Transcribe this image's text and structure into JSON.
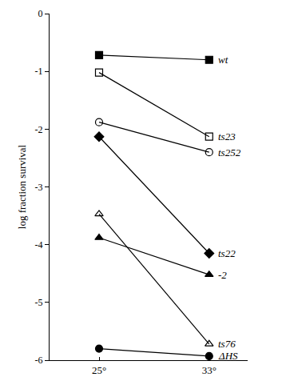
{
  "chart_data": {
    "type": "line",
    "y_label": "log fraction survival",
    "categories": [
      "25°",
      "33°"
    ],
    "ylim": [
      -6,
      0
    ],
    "yticks": [
      -6,
      -5,
      -4,
      -3,
      -2,
      -1,
      0
    ],
    "grid": false,
    "series": [
      {
        "name": "wt",
        "color": "#000000",
        "marker": "square",
        "values": [
          -0.72,
          -0.8
        ]
      },
      {
        "name": "ts23",
        "color": "#000000",
        "marker": "square-open",
        "values": [
          -1.02,
          -2.13
        ]
      },
      {
        "name": "ts252",
        "color": "#000000",
        "marker": "circle-open",
        "values": [
          -1.88,
          -2.4
        ]
      },
      {
        "name": "ts22",
        "color": "#000000",
        "marker": "diamond",
        "values": [
          -2.13,
          -4.15
        ]
      },
      {
        "name": "-2",
        "color": "#000000",
        "marker": "triangle-up",
        "values": [
          -3.88,
          -4.52
        ]
      },
      {
        "name": "ts76",
        "color": "#000000",
        "marker": "triangle-up-open",
        "values": [
          -3.47,
          -5.72
        ]
      },
      {
        "name": "ΔHS",
        "color": "#000000",
        "marker": "circle",
        "values": [
          -5.8,
          -5.93
        ]
      }
    ]
  }
}
